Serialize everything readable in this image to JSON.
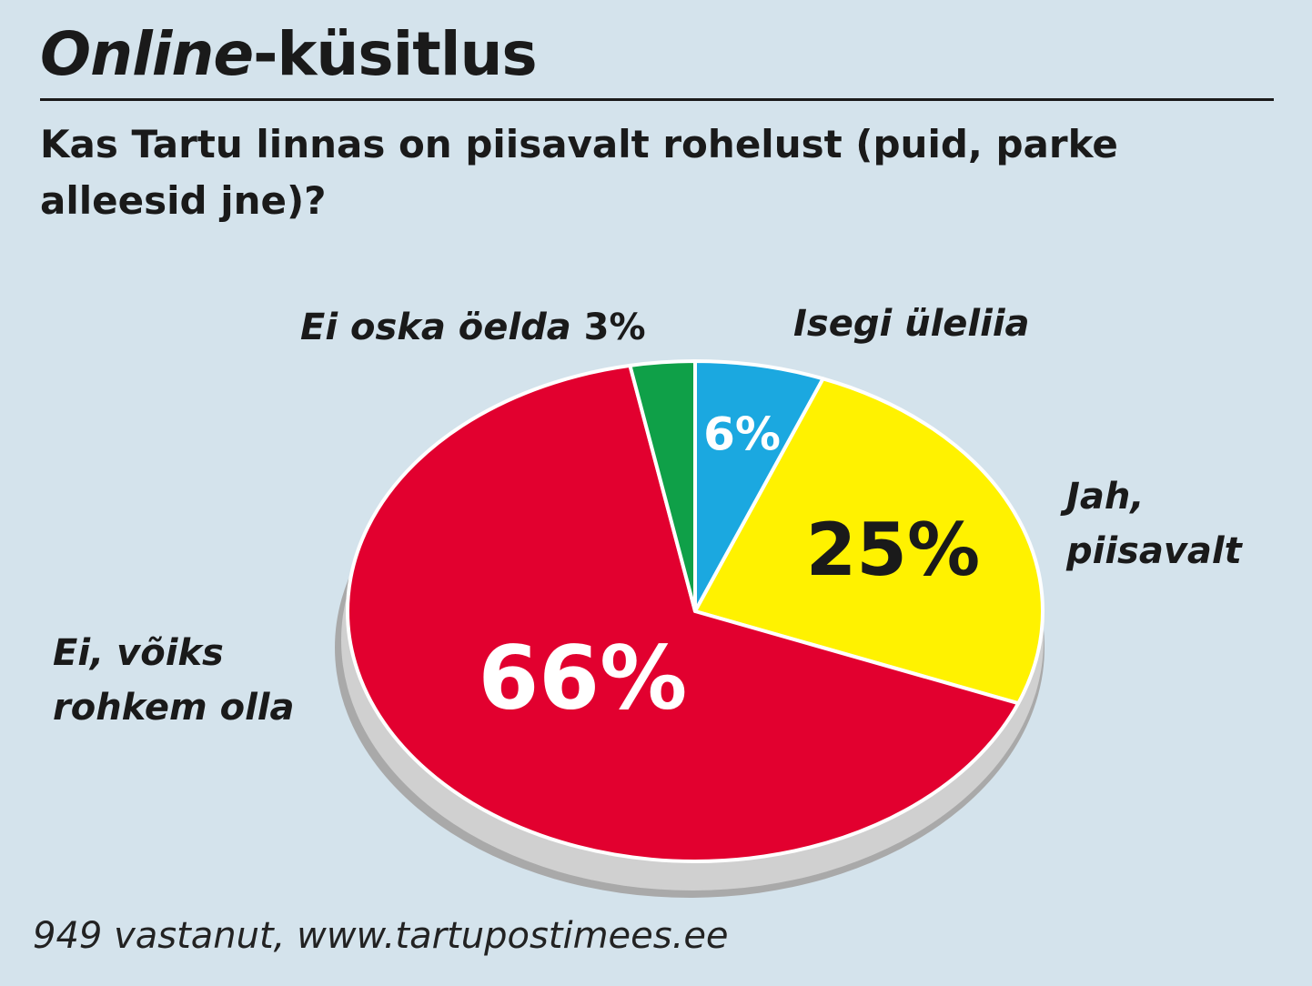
{
  "header": {
    "title_italic": "Online",
    "title_rest": "-küsitlus",
    "question": "Kas Tartu linnas on piisavalt rohelust (puid, parke alleesid jne)?"
  },
  "chart_data": {
    "type": "pie",
    "slices": [
      {
        "label": "Isegi üleliia",
        "value": 6,
        "value_label": "6%",
        "color": "#1ba8e0",
        "text_color": "#ffffff"
      },
      {
        "label": "Jah, piisavalt",
        "value": 25,
        "value_label": "25%",
        "color": "#fff200",
        "text_color": "#1a1a1a"
      },
      {
        "label": "Ei, võiks rohkem olla",
        "value": 66,
        "value_label": "66%",
        "color": "#e2002f",
        "text_color": "#ffffff"
      },
      {
        "label": "Ei oska öelda",
        "value": 3,
        "value_label": "3%",
        "color": "#0fa048",
        "text_color": "#1a1a1a"
      }
    ]
  },
  "labels": {
    "isegi": "Isegi üleliia",
    "jah_line1": "Jah,",
    "jah_line2": "piisavalt",
    "ei_line1": "Ei, võiks",
    "ei_line2": "rohkem olla",
    "ei_oska": "Ei oska öelda"
  },
  "footer": {
    "source": "949 vastanut, www.tartupostimees.ee"
  }
}
